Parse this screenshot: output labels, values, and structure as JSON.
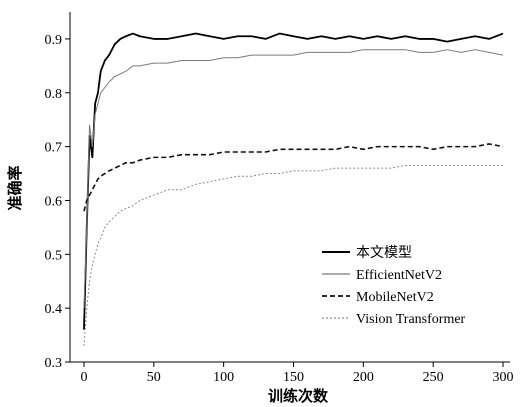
{
  "chart_data": {
    "type": "line",
    "xlabel": "训练次数",
    "ylabel": "准确率",
    "xlim": [
      -10,
      305
    ],
    "ylim": [
      0.3,
      0.95
    ],
    "xticks": [
      0,
      50,
      100,
      150,
      200,
      250,
      300
    ],
    "yticks": [
      0.3,
      0.4,
      0.5,
      0.6,
      0.7,
      0.8,
      0.9
    ],
    "legend_position": "lower-right",
    "grid": false,
    "series": [
      {
        "name": "本文模型",
        "color": "#000000",
        "style": "solid-bold",
        "x": [
          0,
          2,
          4,
          6,
          8,
          10,
          12,
          15,
          18,
          22,
          26,
          30,
          35,
          40,
          50,
          60,
          70,
          80,
          90,
          100,
          110,
          120,
          130,
          140,
          150,
          160,
          170,
          180,
          190,
          200,
          210,
          220,
          230,
          240,
          250,
          260,
          270,
          280,
          290,
          300
        ],
        "values": [
          0.36,
          0.55,
          0.72,
          0.68,
          0.78,
          0.8,
          0.84,
          0.86,
          0.87,
          0.89,
          0.9,
          0.905,
          0.91,
          0.905,
          0.9,
          0.9,
          0.905,
          0.91,
          0.905,
          0.9,
          0.905,
          0.905,
          0.9,
          0.91,
          0.905,
          0.9,
          0.905,
          0.9,
          0.905,
          0.9,
          0.905,
          0.9,
          0.905,
          0.9,
          0.9,
          0.895,
          0.9,
          0.905,
          0.9,
          0.91
        ]
      },
      {
        "name": "EfficientNetV2",
        "color": "#7a7a7a",
        "style": "solid-thin",
        "x": [
          0,
          2,
          4,
          6,
          8,
          10,
          12,
          15,
          18,
          22,
          26,
          30,
          35,
          40,
          50,
          60,
          70,
          80,
          90,
          100,
          110,
          120,
          130,
          140,
          150,
          160,
          170,
          180,
          190,
          200,
          210,
          220,
          230,
          240,
          250,
          260,
          270,
          280,
          290,
          300
        ],
        "values": [
          0.4,
          0.55,
          0.74,
          0.7,
          0.76,
          0.78,
          0.8,
          0.81,
          0.82,
          0.83,
          0.835,
          0.84,
          0.85,
          0.85,
          0.855,
          0.855,
          0.86,
          0.86,
          0.86,
          0.865,
          0.865,
          0.87,
          0.87,
          0.87,
          0.87,
          0.875,
          0.875,
          0.875,
          0.875,
          0.88,
          0.88,
          0.88,
          0.88,
          0.875,
          0.875,
          0.88,
          0.875,
          0.88,
          0.875,
          0.87
        ]
      },
      {
        "name": "MobileNetV2",
        "color": "#111111",
        "style": "dashed",
        "x": [
          0,
          2,
          4,
          6,
          8,
          10,
          12,
          15,
          18,
          22,
          26,
          30,
          35,
          40,
          50,
          60,
          70,
          80,
          90,
          100,
          110,
          120,
          130,
          140,
          150,
          160,
          170,
          180,
          190,
          200,
          210,
          220,
          230,
          240,
          250,
          260,
          270,
          280,
          290,
          300
        ],
        "values": [
          0.58,
          0.6,
          0.61,
          0.62,
          0.63,
          0.64,
          0.645,
          0.65,
          0.655,
          0.66,
          0.665,
          0.67,
          0.67,
          0.675,
          0.68,
          0.68,
          0.685,
          0.685,
          0.685,
          0.69,
          0.69,
          0.69,
          0.69,
          0.695,
          0.695,
          0.695,
          0.695,
          0.695,
          0.7,
          0.695,
          0.7,
          0.7,
          0.7,
          0.7,
          0.695,
          0.7,
          0.7,
          0.7,
          0.705,
          0.7
        ]
      },
      {
        "name": "Vision Transformer",
        "color": "#8a8a8a",
        "style": "dotted",
        "x": [
          0,
          2,
          4,
          6,
          8,
          10,
          12,
          15,
          18,
          22,
          26,
          30,
          35,
          40,
          50,
          60,
          70,
          80,
          90,
          100,
          110,
          120,
          130,
          140,
          150,
          160,
          170,
          180,
          190,
          200,
          210,
          220,
          230,
          240,
          250,
          260,
          270,
          280,
          290,
          300
        ],
        "values": [
          0.33,
          0.4,
          0.45,
          0.48,
          0.5,
          0.52,
          0.53,
          0.55,
          0.56,
          0.57,
          0.58,
          0.585,
          0.59,
          0.6,
          0.61,
          0.62,
          0.62,
          0.63,
          0.635,
          0.64,
          0.645,
          0.645,
          0.65,
          0.65,
          0.655,
          0.655,
          0.655,
          0.66,
          0.66,
          0.66,
          0.66,
          0.66,
          0.665,
          0.665,
          0.665,
          0.665,
          0.665,
          0.665,
          0.665,
          0.665
        ]
      }
    ]
  }
}
